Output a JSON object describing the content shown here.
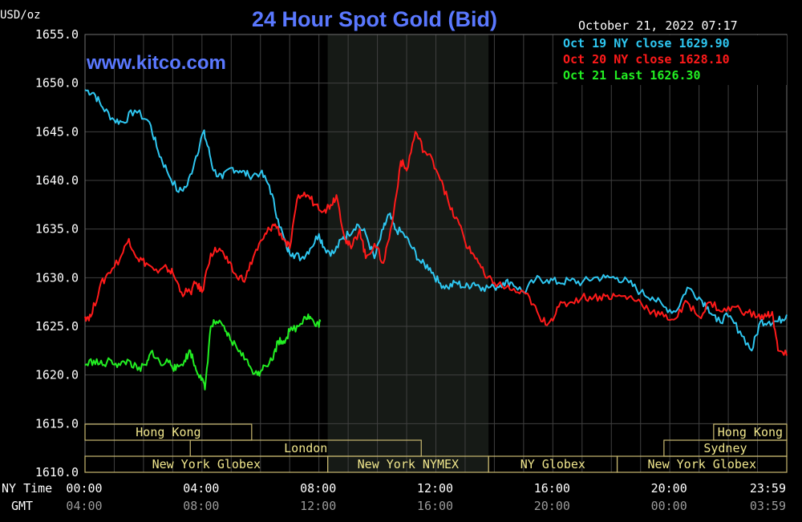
{
  "chart_data": {
    "type": "line",
    "title": "24 Hour Spot Gold (Bid)",
    "watermark": "www.kitco.com",
    "unit_label": "USD/oz",
    "timestamp": "October 21, 2022 07:17",
    "ylim": [
      1610,
      1655
    ],
    "yticks": [
      "1655.0",
      "1650.0",
      "1645.0",
      "1640.0",
      "1635.0",
      "1630.0",
      "1625.0",
      "1620.0",
      "1615.0",
      "1610.0"
    ],
    "ny_time_label": "NY Time",
    "gmt_label": "GMT",
    "xticks_ny": [
      "00:00",
      "04:00",
      "08:00",
      "12:00",
      "16:00",
      "20:00",
      "23:59"
    ],
    "xticks_gmt": [
      "04:00",
      "08:00",
      "12:00",
      "16:00",
      "20:00",
      "00:00",
      "03:59"
    ],
    "xlim_hours": [
      0,
      24
    ],
    "nymex_shade_hours": [
      8.3,
      13.8
    ],
    "colors": {
      "background": "#000000",
      "grid": "#404040",
      "title": "#5a78ff",
      "oct19": "#2ec6f0",
      "oct20": "#ff1a1a",
      "oct21": "#22ee22",
      "session_text": "#f0e68c",
      "session_line": "#c8b870"
    },
    "legend": [
      {
        "label": "Oct 19 NY close 1629.90",
        "color": "#2ec6f0"
      },
      {
        "label": "Oct 20 NY close 1628.10",
        "color": "#ff1a1a"
      },
      {
        "label": "Oct 21 Last 1626.30",
        "color": "#22ee22"
      }
    ],
    "sessions": [
      {
        "label": "Hong Kong",
        "row": 0,
        "start": 0,
        "end": 5.7
      },
      {
        "label": "Hong Kong",
        "row": 0,
        "start": 21.5,
        "end": 24
      },
      {
        "label": "London",
        "row": 1,
        "start": 3.6,
        "end": 11.5
      },
      {
        "label": "Sydney",
        "row": 1,
        "start": 19.8,
        "end": 24
      },
      {
        "label": "New York Globex",
        "row": 2,
        "start": 0,
        "end": 8.3
      },
      {
        "label": "New York NYMEX",
        "row": 2,
        "start": 8.3,
        "end": 13.8
      },
      {
        "label": "NY Globex",
        "row": 2,
        "start": 13.8,
        "end": 18.2
      },
      {
        "label": "New York Globex",
        "row": 2,
        "start": 18.2,
        "end": 24
      }
    ],
    "series": [
      {
        "name": "Oct 19",
        "color": "#2ec6f0",
        "x": [
          0,
          0.3,
          0.6,
          1.0,
          1.3,
          1.7,
          2.2,
          2.5,
          2.8,
          3.2,
          3.5,
          3.8,
          4.05,
          4.2,
          4.4,
          4.7,
          5.0,
          5.3,
          5.6,
          6.0,
          6.3,
          6.6,
          6.9,
          7.1,
          7.4,
          7.7,
          8.0,
          8.2,
          8.5,
          8.8,
          9.0,
          9.3,
          9.6,
          9.9,
          10.2,
          10.4,
          10.6,
          10.9,
          11.2,
          11.5,
          11.8,
          12.1,
          12.4,
          12.7,
          13.0,
          13.3,
          13.6,
          14.0,
          14.3,
          14.6,
          15.0,
          15.4,
          15.8,
          16.2,
          16.6,
          17.0,
          17.4,
          17.8,
          18.2,
          18.6,
          19.0,
          19.4,
          19.8,
          20.2,
          20.6,
          21.0,
          21.3,
          21.6,
          22.0,
          22.4,
          22.8,
          23.1,
          23.4,
          23.7,
          24.0
        ],
        "y": [
          1649.3,
          1649.0,
          1647.5,
          1646.2,
          1646.0,
          1647.2,
          1646.0,
          1643.0,
          1641.0,
          1638.8,
          1639.5,
          1642.5,
          1645.0,
          1643.5,
          1641.0,
          1640.2,
          1641.3,
          1641.0,
          1640.5,
          1640.8,
          1639.5,
          1636.0,
          1633.0,
          1632.5,
          1632.0,
          1633.0,
          1634.5,
          1633.0,
          1632.5,
          1634.0,
          1634.5,
          1635.5,
          1634.5,
          1632.0,
          1635.0,
          1636.5,
          1635.0,
          1634.5,
          1633.0,
          1631.5,
          1631.0,
          1629.5,
          1629.0,
          1629.5,
          1629.0,
          1629.5,
          1629.0,
          1629.0,
          1629.5,
          1629.5,
          1628.5,
          1629.8,
          1629.8,
          1629.5,
          1629.7,
          1629.5,
          1630.0,
          1630.0,
          1630.0,
          1629.5,
          1628.5,
          1628.0,
          1627.0,
          1626.5,
          1629.0,
          1628.0,
          1627.0,
          1625.5,
          1626.0,
          1624.5,
          1622.5,
          1625.5,
          1625.5,
          1625.5,
          1626.2
        ]
      },
      {
        "name": "Oct 20",
        "color": "#ff1a1a",
        "x": [
          0,
          0.2,
          0.5,
          0.8,
          1.2,
          1.5,
          1.8,
          2.1,
          2.5,
          2.8,
          3.0,
          3.3,
          3.6,
          3.8,
          4.0,
          4.3,
          4.6,
          4.9,
          5.2,
          5.5,
          5.8,
          6.1,
          6.3,
          6.5,
          6.8,
          7.0,
          7.3,
          7.6,
          7.9,
          8.2,
          8.4,
          8.6,
          8.9,
          9.1,
          9.4,
          9.6,
          9.9,
          10.2,
          10.5,
          10.8,
          11.0,
          11.3,
          11.6,
          11.9,
          12.2,
          12.5,
          12.8,
          13.1,
          13.4,
          13.7,
          14.0,
          14.4,
          14.8,
          15.2,
          15.6,
          15.9,
          16.2,
          16.6,
          17.0,
          17.4,
          17.8,
          18.2,
          18.6,
          19.0,
          19.4,
          19.8,
          20.2,
          20.6,
          21.0,
          21.4,
          21.8,
          22.2,
          22.6,
          23.0,
          23.3,
          23.5,
          23.7,
          24.0
        ],
        "y": [
          1626.0,
          1626.0,
          1629.0,
          1630.5,
          1632.0,
          1634.0,
          1632.0,
          1631.5,
          1630.5,
          1631.0,
          1630.5,
          1628.5,
          1628.5,
          1629.5,
          1628.5,
          1632.5,
          1633.0,
          1631.5,
          1630.0,
          1630.0,
          1632.5,
          1634.0,
          1635.0,
          1635.5,
          1634.0,
          1633.0,
          1638.5,
          1638.5,
          1637.5,
          1637.0,
          1637.5,
          1638.5,
          1634.0,
          1633.0,
          1635.0,
          1632.0,
          1633.5,
          1631.5,
          1635.5,
          1642.0,
          1641.0,
          1645.0,
          1643.0,
          1642.0,
          1640.0,
          1637.0,
          1635.5,
          1633.0,
          1632.0,
          1630.0,
          1629.5,
          1629.0,
          1628.5,
          1628.0,
          1625.5,
          1625.5,
          1627.0,
          1627.5,
          1628.0,
          1628.0,
          1628.1,
          1628.1,
          1628.0,
          1627.5,
          1626.5,
          1626.0,
          1625.8,
          1627.5,
          1626.0,
          1627.5,
          1626.5,
          1627.0,
          1626.5,
          1626.0,
          1626.0,
          1626.5,
          1622.5,
          1622.0
        ]
      },
      {
        "name": "Oct 21",
        "color": "#22ee22",
        "x": [
          0,
          0.3,
          0.6,
          0.9,
          1.2,
          1.5,
          1.8,
          2.1,
          2.3,
          2.6,
          2.9,
          3.1,
          3.4,
          3.6,
          3.8,
          3.95,
          4.1,
          4.3,
          4.5,
          4.8,
          5.0,
          5.3,
          5.6,
          5.9,
          6.1,
          6.4,
          6.6,
          6.8,
          7.0,
          7.3,
          7.5,
          7.7,
          7.9,
          8.05
        ],
        "y": [
          1621.0,
          1621.5,
          1621.0,
          1621.5,
          1621.0,
          1621.5,
          1620.5,
          1621.0,
          1622.5,
          1621.0,
          1621.5,
          1620.5,
          1621.5,
          1622.5,
          1620.5,
          1620.0,
          1618.5,
          1625.0,
          1625.5,
          1624.5,
          1623.5,
          1622.5,
          1621.0,
          1620.0,
          1621.0,
          1621.5,
          1623.5,
          1623.5,
          1624.5,
          1625.0,
          1626.0,
          1626.0,
          1625.0,
          1625.5
        ]
      }
    ]
  }
}
